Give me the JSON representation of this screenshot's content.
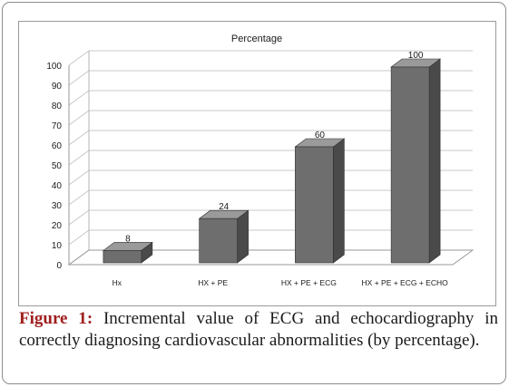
{
  "chart_data": {
    "type": "bar",
    "title": "Percentage",
    "categories": [
      "Hx",
      "HX + PE",
      "HX + PE + ECG",
      "HX + PE + ECG + ECHO"
    ],
    "series": [
      {
        "values": [
          8,
          24,
          60,
          100
        ]
      }
    ],
    "data_labels": [
      "8",
      "24",
      "60",
      "100"
    ],
    "ylim": [
      0,
      100
    ],
    "yticks": [
      0,
      10,
      20,
      30,
      40,
      50,
      60,
      70,
      80,
      90,
      100
    ],
    "xlabel": "",
    "ylabel": "",
    "grid": true,
    "style": "3d-column",
    "colors": {
      "bar_front": "#6e6e6e",
      "bar_top": "#9a9a9a",
      "bar_side": "#4a4a4a",
      "grid": "#c8c8c8"
    }
  },
  "caption": {
    "label": "Figure 1",
    "separator": ":",
    "text": "Incremental value of ECG and echocardiography in correctly diagnosing cardiovascular abnormalities (by percentage)."
  }
}
